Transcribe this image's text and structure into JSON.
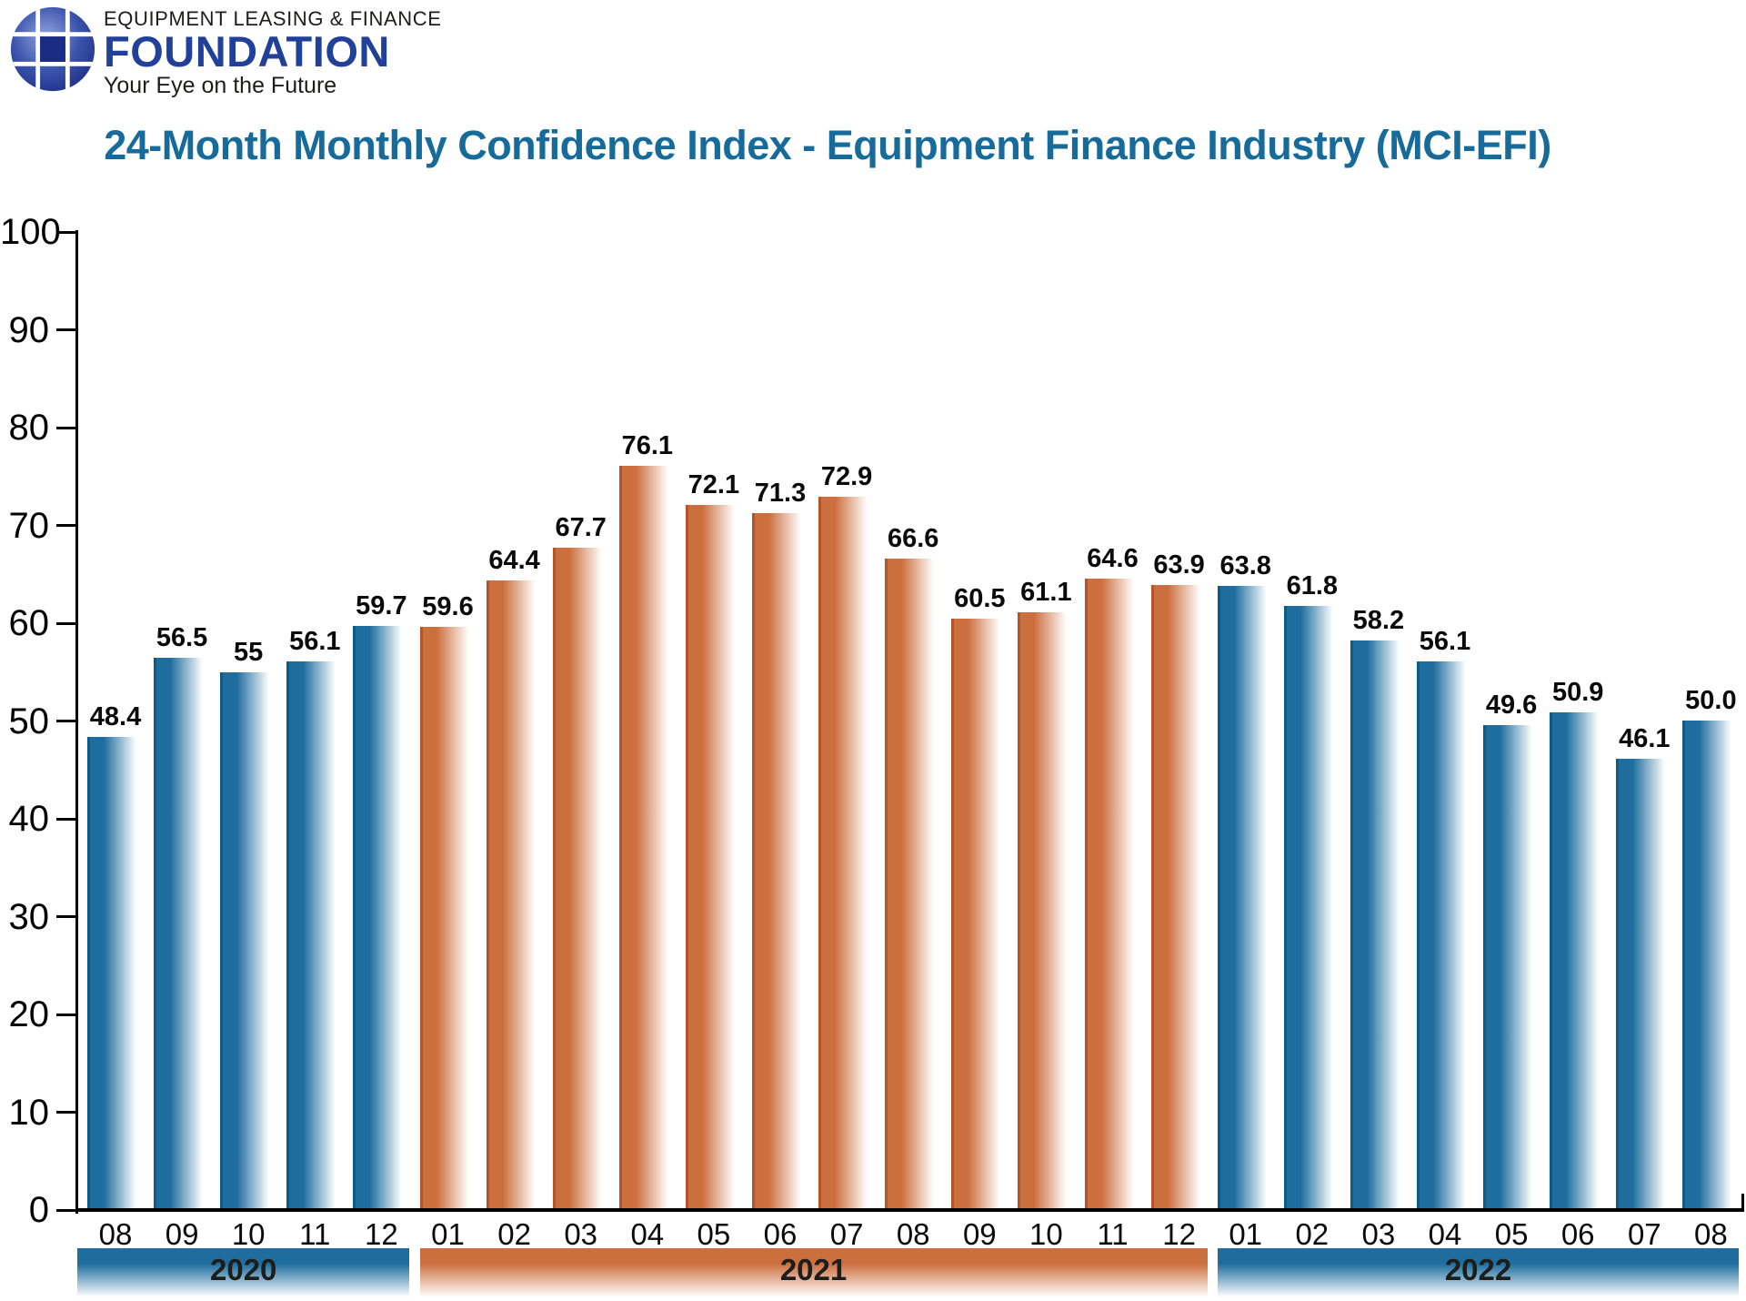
{
  "logo": {
    "line1": "EQUIPMENT LEASING & FINANCE",
    "line2": "FOUNDATION",
    "line3": "Your Eye on the Future"
  },
  "chart_data": {
    "type": "bar",
    "title": "24-Month Monthly Confidence Index - Equipment Finance Industry (MCI-EFI)",
    "xlabel": "",
    "ylabel": "",
    "ylim": [
      0,
      100
    ],
    "yticks": [
      0,
      10,
      20,
      30,
      40,
      50,
      60,
      70,
      80,
      90,
      100
    ],
    "grid": "off",
    "legend": "none",
    "palette": {
      "blue": {
        "main": "#1E6D9E",
        "edge": "#0E5A88"
      },
      "orange": {
        "main": "#CC6F3E",
        "edge": "#B45527"
      }
    },
    "groups": [
      {
        "year": "2020",
        "color": "blue",
        "months": [
          "08",
          "09",
          "10",
          "11",
          "12"
        ],
        "values": [
          48.4,
          56.5,
          55,
          56.1,
          59.7
        ],
        "labels": [
          "48.4",
          "56.5",
          "55",
          "56.1",
          "59.7"
        ]
      },
      {
        "year": "2021",
        "color": "orange",
        "months": [
          "01",
          "02",
          "03",
          "04",
          "05",
          "06",
          "07",
          "08",
          "09",
          "10",
          "11",
          "12"
        ],
        "values": [
          59.6,
          64.4,
          67.7,
          76.1,
          72.1,
          71.3,
          72.9,
          66.6,
          60.5,
          61.1,
          64.6,
          63.9
        ],
        "labels": [
          "59.6",
          "64.4",
          "67.7",
          "76.1",
          "72.1",
          "71.3",
          "72.9",
          "66.6",
          "60.5",
          "61.1",
          "64.6",
          "63.9"
        ]
      },
      {
        "year": "2022",
        "color": "blue",
        "months": [
          "01",
          "02",
          "03",
          "04",
          "05",
          "06",
          "07",
          "08"
        ],
        "values": [
          63.8,
          61.8,
          58.2,
          56.1,
          49.6,
          50.9,
          46.1,
          50.0
        ],
        "labels": [
          "63.8",
          "61.8",
          "58.2",
          "56.1",
          "49.6",
          "50.9",
          "46.1",
          "50.0"
        ]
      }
    ]
  }
}
